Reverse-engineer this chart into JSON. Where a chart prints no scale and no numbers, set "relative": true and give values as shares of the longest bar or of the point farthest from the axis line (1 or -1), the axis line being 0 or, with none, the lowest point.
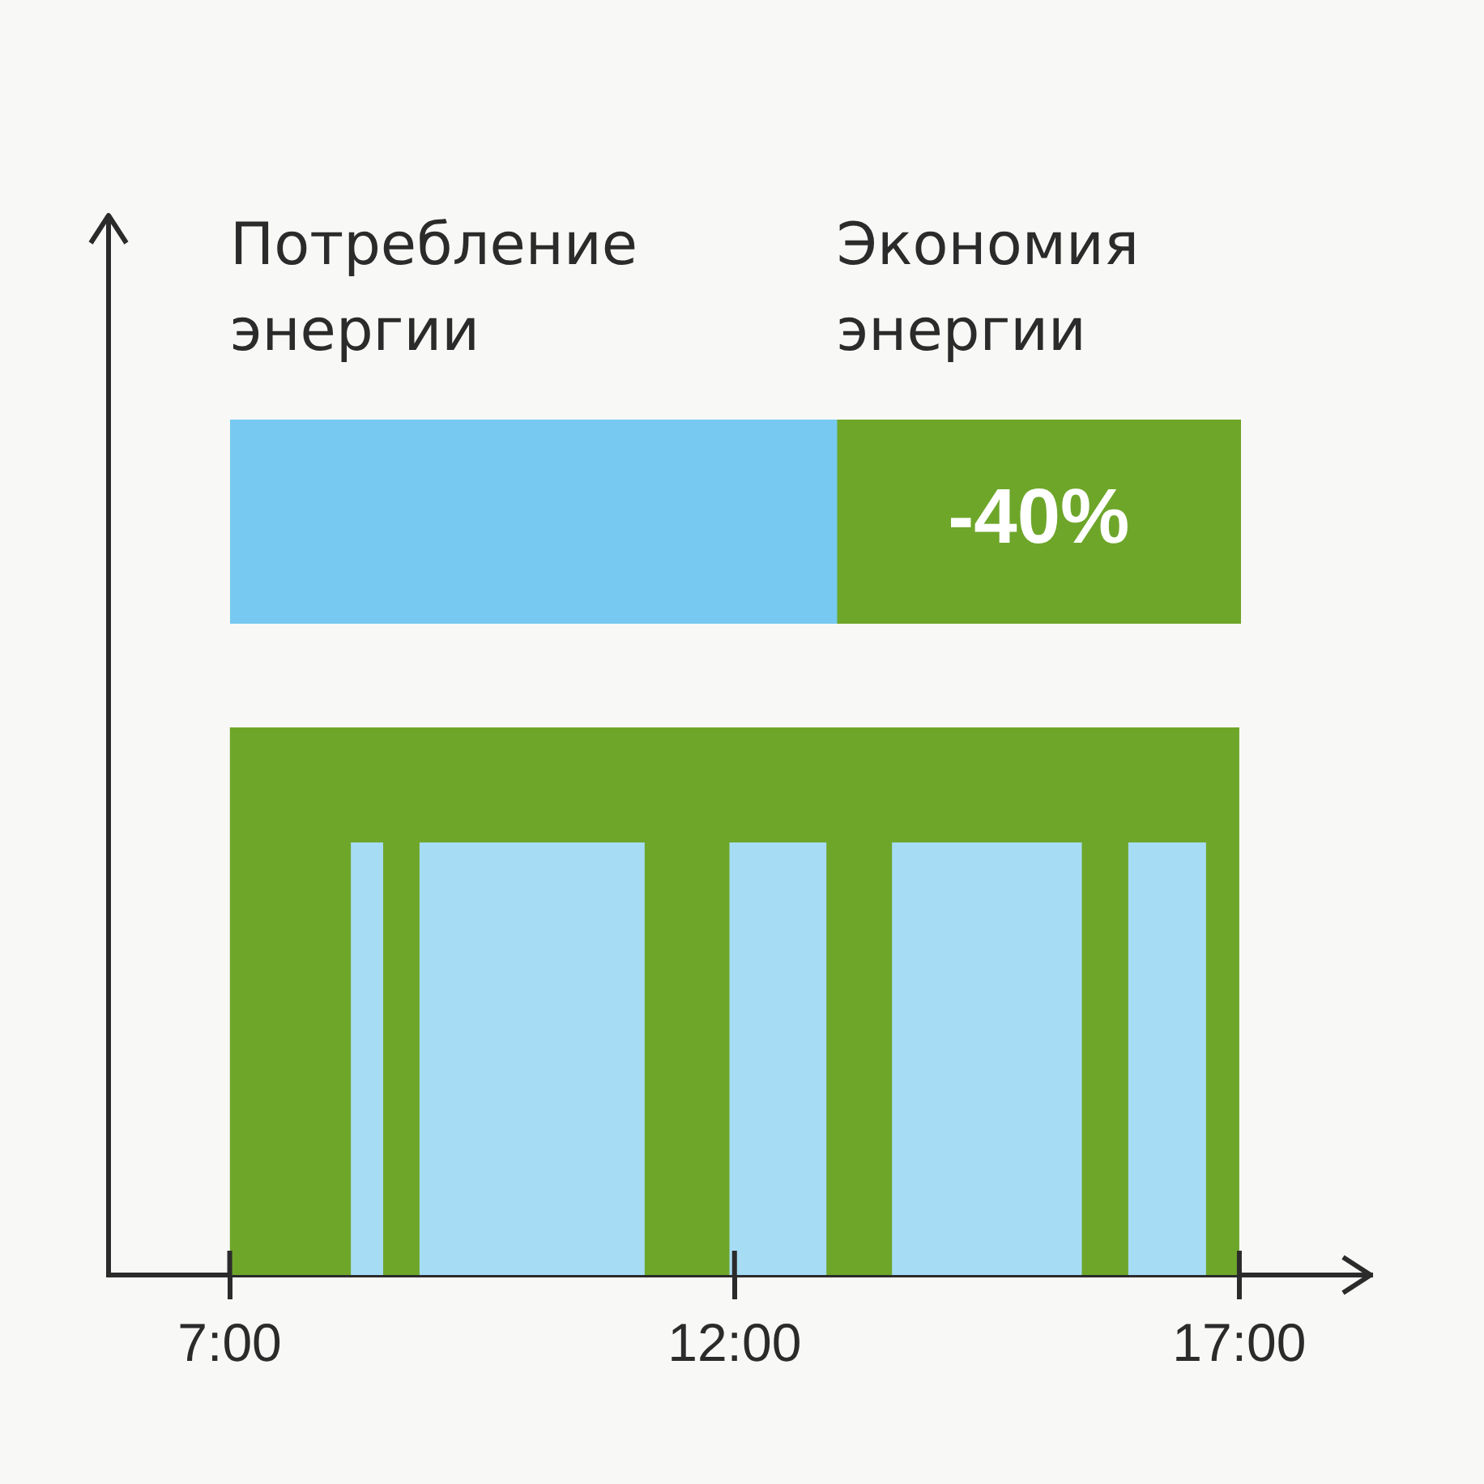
{
  "chart_data": [
    {
      "type": "bar",
      "orientation": "horizontal",
      "stacked": true,
      "relative": true,
      "categories": [
        null
      ],
      "tick_labels": false,
      "series": [
        {
          "name": "Потребление энергии",
          "color": "#77c9f1",
          "values": [
            0.6
          ]
        },
        {
          "name": "Экономия энергии",
          "color": "#6ea62a",
          "values": [
            0.4
          ]
        }
      ],
      "annotations": [
        "-40%"
      ]
    },
    {
      "type": "area",
      "relative": true,
      "series": [
        {
          "color": "#6ea62a",
          "x": [
            7,
            17
          ],
          "values": [
            1,
            1
          ]
        },
        {
          "color": "#a7dcf5",
          "x": [
            7,
            8.2,
            8.2,
            8.52,
            8.52,
            8.88,
            8.88,
            11.11,
            11.11,
            11.95,
            11.95,
            12.91,
            12.91,
            13.56,
            13.56,
            15.44,
            15.44,
            15.9,
            15.9,
            16.67,
            16.67,
            17
          ],
          "values": [
            0,
            0,
            0.79,
            0.79,
            0,
            0,
            0.79,
            0.79,
            0,
            0,
            0.79,
            0.79,
            0,
            0,
            0.79,
            0.79,
            0,
            0,
            0.79,
            0.79,
            0,
            0
          ]
        }
      ],
      "xlim": [
        5.8,
        18.3
      ],
      "xticks": [
        {
          "value": 7,
          "label": "7:00"
        },
        {
          "value": 12,
          "label": "12:00"
        },
        {
          "value": 17,
          "label": "17:00"
        }
      ]
    }
  ]
}
